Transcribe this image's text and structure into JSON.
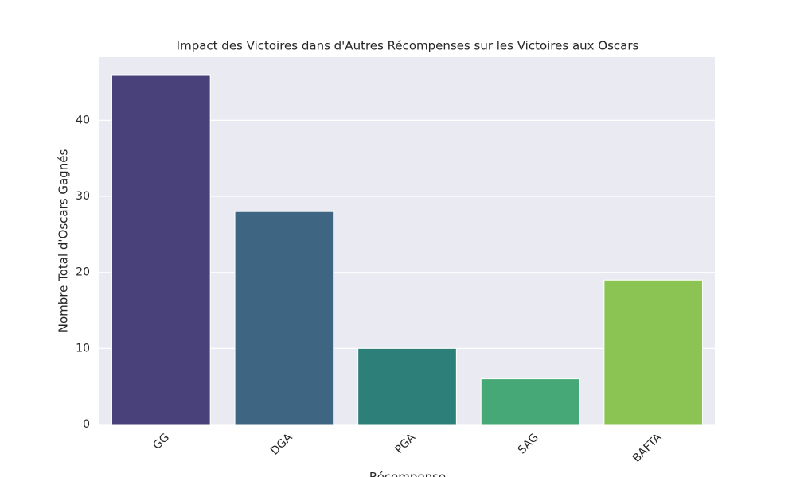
{
  "chart_data": {
    "type": "bar",
    "title": "Impact des Victoires dans d'Autres Récompenses sur les Victoires aux Oscars",
    "x_label": "Récompense",
    "y_label": "Nombre Total d'Oscars Gagnés",
    "categories": [
      "GG",
      "DGA",
      "PGA",
      "SAG",
      "BAFTA"
    ],
    "values": [
      46,
      28,
      10,
      6,
      19
    ],
    "colors": [
      "#48417a",
      "#3e6683",
      "#2d8079",
      "#45a876",
      "#8bc453"
    ],
    "ylim": [
      0,
      48.3
    ],
    "yticks": [
      0,
      10,
      20,
      30,
      40
    ],
    "grid": true
  }
}
